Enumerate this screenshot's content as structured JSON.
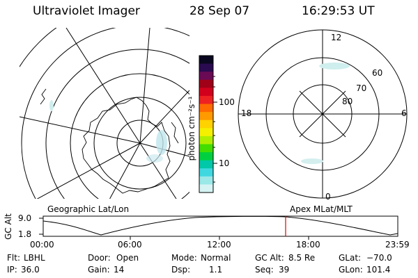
{
  "header": {
    "instrument": "Ultraviolet Imager",
    "date": "28 Sep 07",
    "time": "16:29:53 UT"
  },
  "colorbar": {
    "unit_label": "photon cm⁻²s⁻¹",
    "ticks": [
      "100",
      "10"
    ],
    "colors": [
      "#0a0820",
      "#2a0a50",
      "#6a0a55",
      "#a00018",
      "#d2001c",
      "#ee2222",
      "#ff6b00",
      "#ff9a00",
      "#ffd200",
      "#f5f000",
      "#b0ee00",
      "#44dd00",
      "#00d040",
      "#00c8a8",
      "#40d8e0",
      "#9ae8e8",
      "#d6f3f3"
    ]
  },
  "polar_plot": {
    "labels": {
      "top": "12",
      "left": "18",
      "right": "6",
      "bottom": "0"
    },
    "lat_labels": [
      "60",
      "70",
      "80"
    ]
  },
  "map_captions": {
    "left": "Geographic Lat/Lon",
    "right": "Apex MLat/MLT"
  },
  "altitude_strip": {
    "ylabel": "GC Alt",
    "yticks": [
      "9.0",
      "1.8"
    ],
    "xticks": [
      "00:00",
      "06:00",
      "12:00",
      "18:00",
      "23:59"
    ],
    "current_time_marker": "16:29:53"
  },
  "status": {
    "row1": [
      {
        "key": "Flt:",
        "value": "LBHL"
      },
      {
        "key": "Door:",
        "value": "Open"
      },
      {
        "key": "Mode:",
        "value": "Normal"
      },
      {
        "key": "GC Alt:",
        "value": "8.5 Re"
      },
      {
        "key": "GLat:",
        "value": "−70.0"
      }
    ],
    "row2": [
      {
        "key": "IP:",
        "value": "36.0"
      },
      {
        "key": "Gain:",
        "value": "14"
      },
      {
        "key": "Dsp:",
        "value": "1.1"
      },
      {
        "key": "Seq:",
        "value": "39"
      },
      {
        "key": "GLon:",
        "value": "101.4"
      }
    ]
  }
}
